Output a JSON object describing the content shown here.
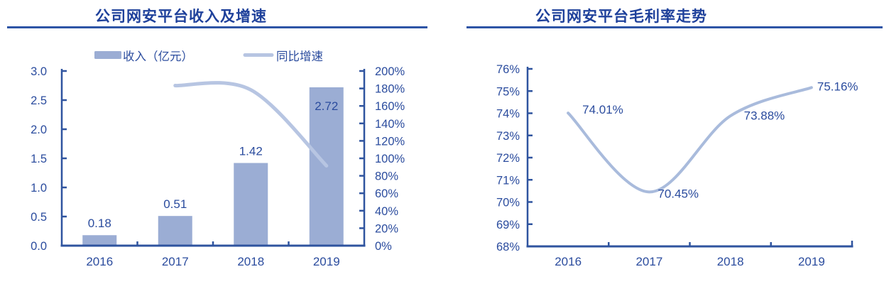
{
  "colors": {
    "accent_text": "#2B4C9E",
    "title_text": "#1F419B",
    "axis": "#2F549F",
    "title_underline": "#2E55A6",
    "bar_fill": "#9BADD4",
    "growth_line": "#B7C5E2",
    "margin_line": "#A9BBDC"
  },
  "chart_data": [
    {
      "type": "bar",
      "title": "公司网安平台收入及增速",
      "categories": [
        "2016",
        "2017",
        "2018",
        "2019"
      ],
      "series": [
        {
          "name": "收入（亿元）",
          "type": "bar",
          "axis": "left",
          "values": [
            0.18,
            0.51,
            1.42,
            2.72
          ],
          "labels": [
            "0.18",
            "0.51",
            "1.42",
            "2.72"
          ]
        },
        {
          "name": "同比增速",
          "type": "line",
          "axis": "right",
          "values": [
            null,
            183.3,
            178.4,
            91.5
          ]
        }
      ],
      "left_axis": {
        "min": 0,
        "max": 3,
        "step": 0.5,
        "ticks": [
          "3.0",
          "2.5",
          "2.0",
          "1.5",
          "1.0",
          "0.5",
          "0.0"
        ]
      },
      "right_axis": {
        "min": 0,
        "max": 200,
        "step": 20,
        "ticks": [
          "200%",
          "180%",
          "160%",
          "140%",
          "120%",
          "100%",
          "80%",
          "60%",
          "40%",
          "20%",
          "0%"
        ]
      },
      "legend_position": "top",
      "grid": false
    },
    {
      "type": "line",
      "title": "公司网安平台毛利率走势",
      "categories": [
        "2016",
        "2017",
        "2018",
        "2019"
      ],
      "series": [
        {
          "name": "毛利率",
          "type": "line",
          "axis": "left",
          "values": [
            74.01,
            70.45,
            73.88,
            75.16
          ],
          "labels": [
            "74.01%",
            "70.45%",
            "73.88%",
            "75.16%"
          ]
        }
      ],
      "left_axis": {
        "min": 68,
        "max": 76,
        "step": 1,
        "ticks": [
          "76%",
          "75%",
          "74%",
          "73%",
          "72%",
          "71%",
          "70%",
          "69%",
          "68%"
        ]
      },
      "grid": false
    }
  ]
}
